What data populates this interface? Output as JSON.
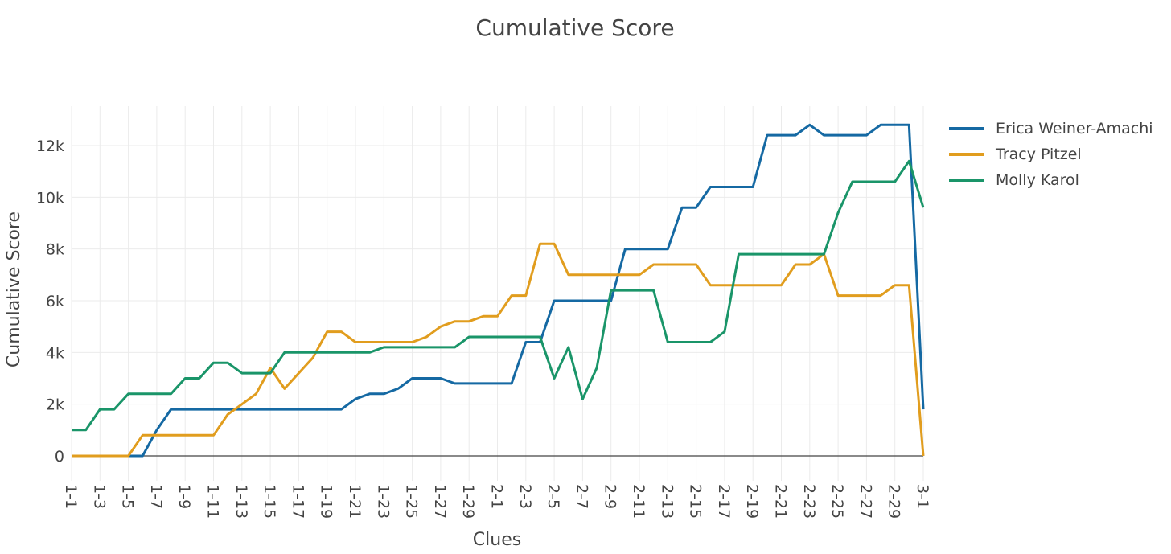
{
  "chart_data": {
    "type": "line",
    "title": "Cumulative Score",
    "xlabel": "Clues",
    "ylabel": "Cumulative Score",
    "x": [
      "1-1",
      "1-2",
      "1-3",
      "1-4",
      "1-5",
      "1-6",
      "1-7",
      "1-8",
      "1-9",
      "1-10",
      "1-11",
      "1-12",
      "1-13",
      "1-14",
      "1-15",
      "1-16",
      "1-17",
      "1-18",
      "1-19",
      "1-20",
      "1-21",
      "1-22",
      "1-23",
      "1-24",
      "1-25",
      "1-26",
      "1-27",
      "1-28",
      "1-29",
      "1-30",
      "2-1",
      "2-2",
      "2-3",
      "2-4",
      "2-5",
      "2-6",
      "2-7",
      "2-8",
      "2-9",
      "2-10",
      "2-11",
      "2-12",
      "2-13",
      "2-14",
      "2-15",
      "2-16",
      "2-17",
      "2-18",
      "2-19",
      "2-20",
      "2-21",
      "2-22",
      "2-23",
      "2-24",
      "2-25",
      "2-26",
      "2-27",
      "2-28",
      "2-29",
      "2-30",
      "3-1"
    ],
    "x_tick_labels": [
      "1-1",
      "1-3",
      "1-5",
      "1-7",
      "1-9",
      "1-11",
      "1-13",
      "1-15",
      "1-17",
      "1-19",
      "1-21",
      "1-23",
      "1-25",
      "1-27",
      "1-29",
      "2-1",
      "2-3",
      "2-5",
      "2-7",
      "2-9",
      "2-11",
      "2-13",
      "2-15",
      "2-17",
      "2-19",
      "2-21",
      "2-23",
      "2-25",
      "2-27",
      "2-29",
      "3-1"
    ],
    "ylim": [
      -800,
      13500
    ],
    "y_ticks": [
      0,
      2000,
      4000,
      6000,
      8000,
      10000,
      12000
    ],
    "y_tick_labels": [
      "0",
      "2k",
      "4k",
      "6k",
      "8k",
      "10k",
      "12k"
    ],
    "grid": true,
    "legend_position": "top-right",
    "series": [
      {
        "name": "Erica Weiner-Amachi",
        "color": "#1569a3",
        "values": [
          0,
          0,
          0,
          0,
          0,
          0,
          1000,
          1800,
          1800,
          1800,
          1800,
          1800,
          1800,
          1800,
          1800,
          1800,
          1800,
          1800,
          1800,
          1800,
          2200,
          2400,
          2400,
          2600,
          3000,
          3000,
          3000,
          2800,
          2800,
          2800,
          2800,
          2800,
          4400,
          4400,
          6000,
          6000,
          6000,
          6000,
          6000,
          8000,
          8000,
          8000,
          8000,
          9600,
          9600,
          10400,
          10400,
          10400,
          10400,
          12400,
          12400,
          12400,
          12800,
          12400,
          12400,
          12400,
          12400,
          12800,
          12800,
          12800,
          1800
        ]
      },
      {
        "name": "Tracy Pitzel",
        "color": "#e19d1e",
        "values": [
          0,
          0,
          0,
          0,
          0,
          800,
          800,
          800,
          800,
          800,
          800,
          1600,
          2000,
          2400,
          3400,
          2600,
          3200,
          3800,
          4800,
          4800,
          4400,
          4400,
          4400,
          4400,
          4400,
          4600,
          5000,
          5200,
          5200,
          5400,
          5400,
          6200,
          6200,
          8200,
          8200,
          7000,
          7000,
          7000,
          7000,
          7000,
          7000,
          7400,
          7400,
          7400,
          7400,
          6600,
          6600,
          6600,
          6600,
          6600,
          6600,
          7400,
          7400,
          7800,
          6200,
          6200,
          6200,
          6200,
          6600,
          6600,
          0
        ]
      },
      {
        "name": "Molly Karol",
        "color": "#1a9569",
        "values": [
          1000,
          1000,
          1800,
          1800,
          2400,
          2400,
          2400,
          2400,
          3000,
          3000,
          3600,
          3600,
          3200,
          3200,
          3200,
          4000,
          4000,
          4000,
          4000,
          4000,
          4000,
          4000,
          4200,
          4200,
          4200,
          4200,
          4200,
          4200,
          4600,
          4600,
          4600,
          4600,
          4600,
          4600,
          3000,
          4200,
          2200,
          3400,
          6400,
          6400,
          6400,
          6400,
          4400,
          4400,
          4400,
          4400,
          4800,
          7800,
          7800,
          7800,
          7800,
          7800,
          7800,
          7800,
          9400,
          10600,
          10600,
          10600,
          10600,
          11400,
          9600
        ]
      }
    ]
  }
}
